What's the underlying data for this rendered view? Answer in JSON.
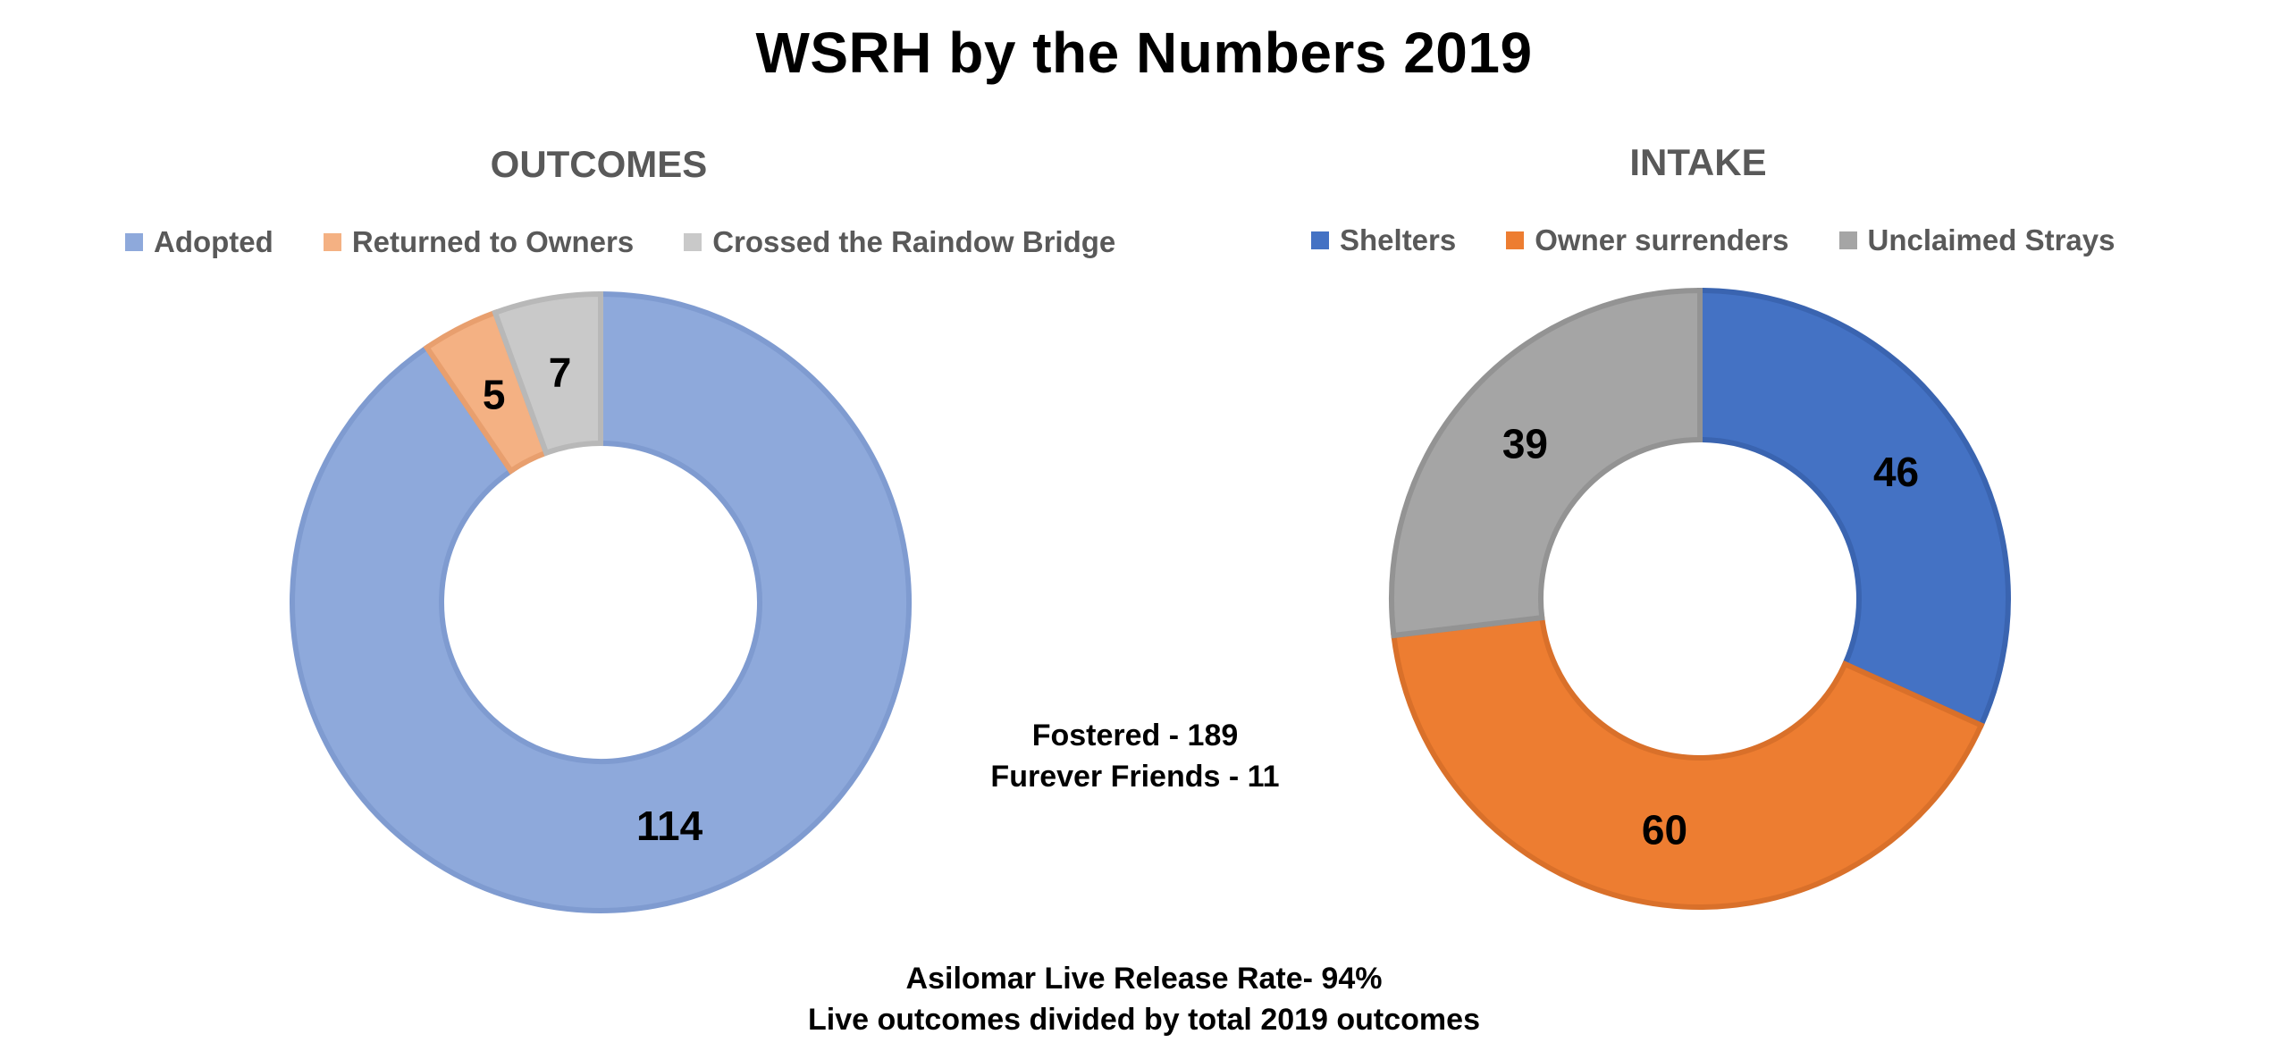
{
  "title": "WSRH by the Numbers 2019",
  "center_notes": [
    "Fostered - 189",
    "Furever Friends - 11"
  ],
  "footer_notes": [
    "Asilomar Live Release Rate- 94%",
    "Live outcomes divided by total 2019 outcomes"
  ],
  "chart_data": [
    {
      "type": "pie",
      "style": "donut",
      "title": "OUTCOMES",
      "legend_placement": "top",
      "categories": [
        "Adopted",
        "Returned to Owners",
        "Crossed the Raindow Bridge"
      ],
      "values": [
        114,
        5,
        7
      ],
      "colors": [
        "#8EA9DB",
        "#F4B183",
        "#C9C9C9"
      ],
      "border_colors": [
        "#7F9BD0",
        "#E89F6E",
        "#B8B8B8"
      ]
    },
    {
      "type": "pie",
      "style": "donut",
      "title": "INTAKE",
      "legend_placement": "top",
      "categories": [
        "Shelters",
        "Owner surrenders",
        "Unclaimed Strays"
      ],
      "values": [
        46,
        60,
        39
      ],
      "colors": [
        "#4472C4",
        "#ED7D31",
        "#A5A5A5"
      ],
      "border_colors": [
        "#3A64B0",
        "#D9702A",
        "#939393"
      ]
    }
  ]
}
